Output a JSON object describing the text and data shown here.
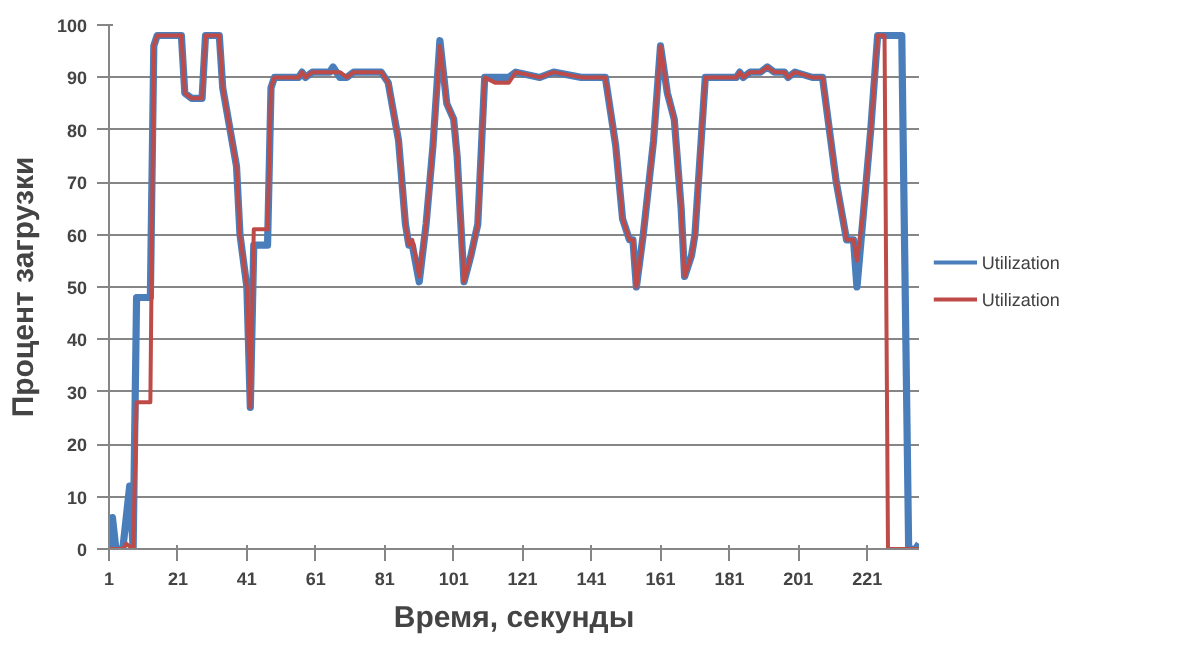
{
  "chart_data": {
    "type": "line",
    "xlabel": "Время, секунды",
    "ylabel": "Процент загрузки",
    "xlim": [
      1,
      236
    ],
    "xticks": [
      1,
      21,
      41,
      61,
      81,
      101,
      121,
      141,
      161,
      181,
      201,
      221
    ],
    "ylim": [
      0,
      100
    ],
    "yticks": [
      0,
      10,
      20,
      30,
      40,
      50,
      60,
      70,
      80,
      90,
      100
    ],
    "grid": "y",
    "legend": "right",
    "marker": "none",
    "line_style": "solid",
    "series": [
      {
        "name": "Utilization",
        "color": "#4a7ebb",
        "x": [
          1,
          2,
          3,
          5,
          7,
          8,
          9,
          13,
          14,
          15,
          22,
          23,
          25,
          28,
          29,
          33,
          34,
          38,
          39,
          41,
          42,
          43,
          47,
          48,
          49,
          56,
          57,
          58,
          60,
          65,
          66,
          67,
          68,
          70,
          72,
          80,
          82,
          85,
          87,
          88,
          89,
          91,
          93,
          95,
          97,
          99,
          101,
          102,
          104,
          106,
          107,
          108,
          110,
          113,
          117,
          119,
          126,
          130,
          138,
          145,
          148,
          150,
          152,
          153,
          154,
          156,
          159,
          161,
          163,
          165,
          167,
          168,
          170,
          171,
          174,
          176,
          183,
          184,
          185,
          187,
          190,
          192,
          194,
          197,
          198,
          200,
          205,
          208,
          212,
          215,
          217,
          218,
          220,
          222,
          224,
          231,
          233,
          235,
          236
        ],
        "values": [
          0,
          6,
          0,
          0,
          12,
          0,
          48,
          48,
          96,
          98,
          98,
          87,
          86,
          86,
          98,
          98,
          88,
          73,
          60,
          50,
          27,
          58,
          58,
          88,
          90,
          90,
          91,
          90,
          91,
          91,
          92,
          91,
          90,
          90,
          91,
          91,
          89,
          78,
          62,
          58,
          58,
          51,
          62,
          77,
          97,
          85,
          82,
          75,
          51,
          56,
          59,
          62,
          90,
          90,
          90,
          91,
          90,
          91,
          90,
          90,
          77,
          63,
          59,
          59,
          50,
          60,
          78,
          96,
          87,
          82,
          65,
          52,
          56,
          60,
          90,
          90,
          90,
          91,
          90,
          91,
          91,
          92,
          91,
          91,
          90,
          91,
          90,
          90,
          70,
          59,
          59,
          50,
          65,
          80,
          98,
          98,
          0,
          0,
          1
        ]
      },
      {
        "name": "Utilization",
        "color": "#be4b48",
        "x": [
          1,
          5,
          6,
          8,
          9,
          13,
          14,
          15,
          22,
          23,
          25,
          28,
          29,
          33,
          34,
          38,
          39,
          41,
          42,
          43,
          47,
          48,
          49,
          56,
          57,
          58,
          60,
          68,
          70,
          72,
          80,
          82,
          85,
          87,
          88,
          89,
          91,
          93,
          95,
          97,
          99,
          101,
          102,
          104,
          106,
          107,
          108,
          110,
          113,
          117,
          119,
          126,
          130,
          138,
          145,
          148,
          150,
          152,
          153,
          154,
          156,
          159,
          161,
          163,
          165,
          167,
          168,
          170,
          171,
          174,
          176,
          183,
          184,
          185,
          187,
          190,
          192,
          194,
          197,
          198,
          200,
          205,
          208,
          212,
          215,
          217,
          218,
          220,
          222,
          224,
          226,
          227,
          236
        ],
        "values": [
          0,
          0,
          1,
          0,
          28,
          28,
          96,
          98,
          98,
          87,
          86,
          86,
          98,
          98,
          88,
          73,
          60,
          50,
          27,
          61,
          61,
          88,
          90,
          90,
          91,
          90,
          91,
          91,
          90,
          91,
          91,
          89,
          78,
          62,
          58,
          59,
          52,
          62,
          77,
          96,
          85,
          82,
          75,
          51,
          56,
          59,
          62,
          90,
          89,
          89,
          91,
          90,
          91,
          90,
          90,
          77,
          63,
          59,
          59,
          50,
          60,
          78,
          96,
          87,
          82,
          65,
          52,
          56,
          60,
          90,
          90,
          90,
          91,
          90,
          91,
          91,
          92,
          91,
          91,
          90,
          91,
          90,
          90,
          70,
          59,
          59,
          55,
          65,
          80,
          98,
          98,
          0,
          0
        ]
      }
    ]
  }
}
